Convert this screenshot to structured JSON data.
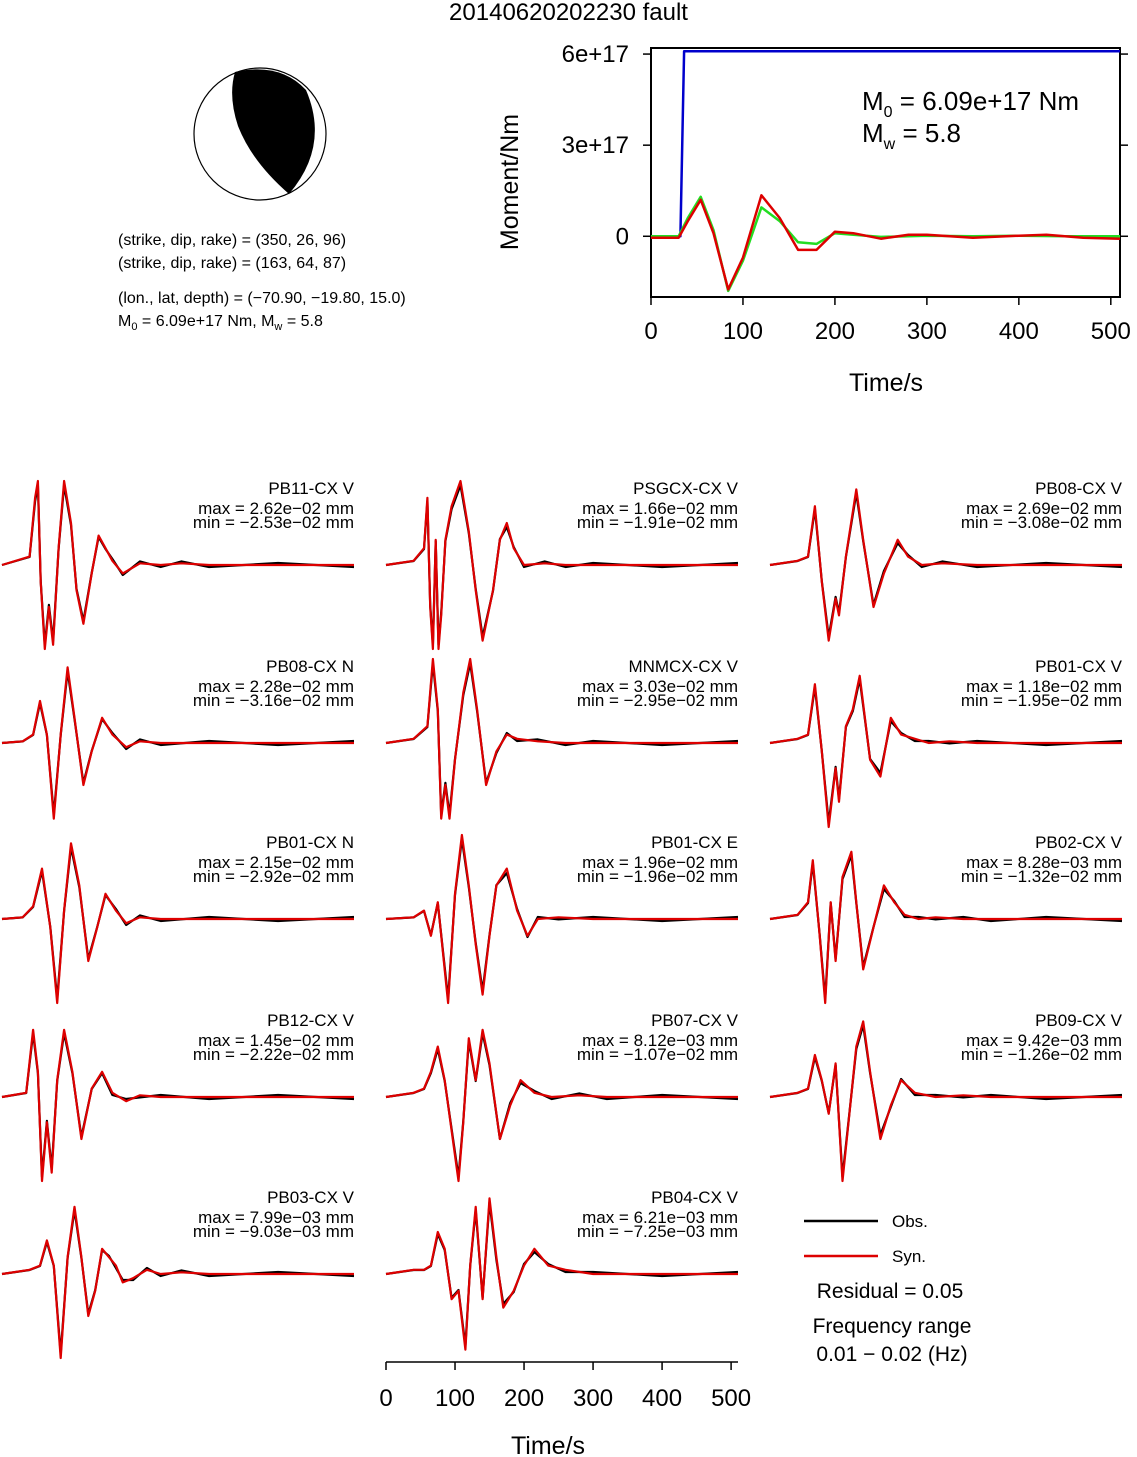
{
  "title": "20140620202230 fault",
  "info": {
    "line1": "(strike, dip, rake) = (350, 26, 96)",
    "line2": "(strike, dip, rake) = (163, 64, 87)",
    "line3": "(lon., lat, depth) = (−70.90, −19.80, 15.0)",
    "m0_prefix": "M",
    "m0_sub": "0",
    "m0_rest": " = 6.09e+17 Nm, M",
    "mw_sub": "w",
    "mw_rest": " = 5.8"
  },
  "moment_panel": {
    "ylabel": "Moment/Nm",
    "xlabel": "Time/s",
    "m0_label": "M",
    "m0_sub": "0",
    "m0_value": " = 6.09e+17 Nm",
    "mw_label": "M",
    "mw_sub": "w",
    "mw_value": " = 5.8"
  },
  "chart_data": [
    {
      "type": "line",
      "xlabel": "Time/s",
      "ylabel": "Moment/Nm",
      "xlim": [
        0,
        510
      ],
      "ylim": [
        -2e+17,
        6.2e+17
      ],
      "x_ticks": [
        0,
        100,
        200,
        300,
        400,
        500
      ],
      "y_ticks": [
        0,
        3e+17,
        6e+17
      ],
      "y_tick_labels": [
        "0",
        "3e+17",
        "6e+17"
      ],
      "series": [
        {
          "color": "#0000cc",
          "x": [
            0,
            32,
            36,
            510
          ],
          "y": [
            0,
            0,
            6.09e+17,
            6.09e+17
          ]
        },
        {
          "color": "#22dd22",
          "x": [
            0,
            30,
            40,
            54,
            68,
            84,
            100,
            120,
            140,
            160,
            180,
            200,
            220,
            250,
            300,
            350,
            400,
            450,
            510
          ],
          "y": [
            0,
            0,
            6e+16,
            1.3e+17,
            2e+16,
            -1.8e+17,
            -8e+16,
            9.5e+16,
            5e+16,
            -2e+16,
            -2.5e+16,
            1e+16,
            5000000000000000.0,
            -2000000000000000.0,
            2000000000000000.0,
            0,
            2000000000000000.0,
            0,
            0
          ]
        },
        {
          "color": "#dd0000",
          "x": [
            0,
            30,
            40,
            54,
            68,
            84,
            100,
            120,
            140,
            160,
            180,
            200,
            220,
            250,
            280,
            300,
            350,
            400,
            430,
            470,
            510
          ],
          "y": [
            -5000000000000000.0,
            -5000000000000000.0,
            5e+16,
            1.2e+17,
            1e+16,
            -1.75e+17,
            -7e+16,
            1.35e+17,
            6e+16,
            -4.5e+16,
            -4.5e+16,
            1.5e+16,
            1e+16,
            -8000000000000000.0,
            5000000000000000.0,
            5000000000000000.0,
            -5000000000000000.0,
            2000000000000000.0,
            5000000000000000.0,
            -5000000000000000.0,
            -8000000000000000.0
          ]
        }
      ]
    },
    {
      "type": "line",
      "xlabel": "Time/s",
      "xlim": [
        0,
        510
      ],
      "x_ticks": [
        0,
        100,
        200,
        300,
        400,
        500
      ],
      "stations": [
        {
          "name": "PB11-CX V",
          "max": "max = 2.62e−02 mm",
          "min": "min = −2.53e−02 mm",
          "x": [
            0,
            40,
            48,
            52,
            56,
            62,
            68,
            74,
            82,
            90,
            100,
            108,
            118,
            130,
            140,
            150,
            160,
            175,
            200,
            230,
            260,
            300,
            400,
            510
          ],
          "y": [
            0,
            0.1,
            0.8,
            1.0,
            -0.2,
            -1.0,
            -0.5,
            -0.95,
            0.2,
            1.0,
            0.5,
            -0.3,
            -0.7,
            -0.1,
            0.35,
            0.2,
            0.05,
            -0.1,
            0.02,
            0,
            0.02,
            0,
            0,
            0
          ]
        },
        {
          "name": "PSGCX-CX V",
          "max": "max = 1.66e−02 mm",
          "min": "min = −1.91e−02 mm",
          "x": [
            0,
            40,
            55,
            60,
            64,
            68,
            72,
            76,
            80,
            86,
            95,
            108,
            120,
            130,
            140,
            155,
            165,
            175,
            185,
            200,
            230,
            260,
            300,
            400,
            510
          ],
          "y": [
            0,
            0.05,
            0.2,
            0.8,
            -0.5,
            -1.0,
            0.3,
            -1.0,
            -0.6,
            0.3,
            0.7,
            1.0,
            0.4,
            -0.3,
            -0.9,
            -0.3,
            0.3,
            0.5,
            0.2,
            0,
            0.02,
            0,
            0,
            0,
            0
          ]
        },
        {
          "name": "PB08-CX V",
          "max": "max = 2.69e−02 mm",
          "min": "min = −3.08e−02 mm",
          "x": [
            0,
            40,
            55,
            65,
            75,
            85,
            95,
            100,
            110,
            125,
            135,
            150,
            165,
            185,
            200,
            220,
            250,
            300,
            400,
            510
          ],
          "y": [
            0,
            0.05,
            0.1,
            0.7,
            -0.2,
            -0.9,
            -0.4,
            -0.6,
            0.1,
            0.9,
            0.3,
            -0.5,
            -0.1,
            0.3,
            0.1,
            0,
            0.02,
            0,
            0,
            0
          ]
        },
        {
          "name": "PB08-CX N",
          "max": "max = 2.28e−02 mm",
          "min": "min = −3.16e−02 mm",
          "x": [
            0,
            30,
            45,
            55,
            65,
            75,
            85,
            95,
            105,
            118,
            130,
            145,
            160,
            180,
            200,
            230,
            300,
            400,
            510
          ],
          "y": [
            0,
            0.02,
            0.1,
            0.5,
            0.1,
            -0.9,
            0.1,
            0.9,
            0.3,
            -0.5,
            -0.1,
            0.3,
            0.1,
            -0.05,
            0.02,
            0,
            0,
            0,
            0
          ]
        },
        {
          "name": "MNMCX-CX V",
          "max": "max = 3.03e−02 mm",
          "min": "min = −2.95e−02 mm",
          "x": [
            0,
            40,
            60,
            68,
            75,
            80,
            86,
            92,
            100,
            112,
            122,
            132,
            145,
            160,
            175,
            190,
            220,
            260,
            300,
            400,
            510
          ],
          "y": [
            0,
            0.05,
            0.2,
            1.0,
            0.4,
            -0.9,
            -0.5,
            -0.9,
            -0.2,
            0.6,
            1.0,
            0.4,
            -0.5,
            -0.1,
            0.1,
            0.05,
            0.02,
            0,
            0,
            0,
            0
          ]
        },
        {
          "name": "PB01-CX V",
          "max": "max = 1.18e−02 mm",
          "min": "min = −1.95e−02 mm",
          "x": [
            0,
            40,
            55,
            65,
            75,
            85,
            95,
            100,
            110,
            120,
            130,
            145,
            160,
            175,
            190,
            210,
            230,
            260,
            300,
            400,
            510
          ],
          "y": [
            0,
            0.05,
            0.1,
            0.7,
            -0.1,
            -1.0,
            -0.3,
            -0.7,
            0.2,
            0.4,
            0.8,
            -0.2,
            -0.4,
            0.3,
            0.1,
            0.05,
            0,
            0.02,
            0,
            0,
            0
          ]
        },
        {
          "name": "PB01-CX N",
          "max": "max = 2.15e−02 mm",
          "min": "min = −2.92e−02 mm",
          "x": [
            0,
            30,
            45,
            58,
            70,
            80,
            90,
            100,
            112,
            125,
            138,
            150,
            165,
            180,
            200,
            230,
            300,
            400,
            510
          ],
          "y": [
            0,
            0.02,
            0.15,
            0.6,
            -0.1,
            -1.0,
            0.1,
            0.9,
            0.4,
            -0.5,
            -0.1,
            0.3,
            0.1,
            -0.05,
            0.02,
            0,
            0,
            0,
            0
          ]
        },
        {
          "name": "PB01-CX E",
          "max": "max = 1.96e−02 mm",
          "min": "min = −1.96e−02 mm",
          "x": [
            0,
            40,
            55,
            65,
            75,
            90,
            100,
            110,
            120,
            130,
            140,
            150,
            160,
            175,
            190,
            205,
            220,
            250,
            300,
            400,
            510
          ],
          "y": [
            0,
            0.02,
            0.1,
            -0.2,
            0.2,
            -1.0,
            0.3,
            1.0,
            0.4,
            -0.3,
            -0.9,
            -0.2,
            0.4,
            0.6,
            0.1,
            -0.2,
            0,
            0.02,
            0,
            0,
            0
          ]
        },
        {
          "name": "PB02-CX V",
          "max": "max = 8.28e−03 mm",
          "min": "min = −1.32e−02 mm",
          "x": [
            0,
            40,
            55,
            62,
            72,
            80,
            88,
            95,
            105,
            118,
            125,
            135,
            150,
            165,
            180,
            195,
            215,
            240,
            280,
            320,
            400,
            510
          ],
          "y": [
            0,
            0.05,
            0.2,
            0.7,
            -0.2,
            -1.0,
            0.2,
            -0.5,
            0.5,
            0.8,
            0.2,
            -0.6,
            -0.1,
            0.4,
            0.2,
            0.05,
            0,
            0.02,
            0,
            0,
            0,
            0
          ]
        },
        {
          "name": "PB12-CX V",
          "max": "max = 1.45e−02 mm",
          "min": "min = −2.22e−02 mm",
          "x": [
            0,
            35,
            45,
            52,
            58,
            65,
            72,
            80,
            90,
            102,
            115,
            130,
            145,
            160,
            180,
            200,
            230,
            300,
            400,
            510
          ],
          "y": [
            0,
            0.05,
            0.8,
            0.3,
            -1.0,
            -0.3,
            -0.9,
            0.2,
            0.8,
            0.3,
            -0.5,
            0.1,
            0.3,
            0.05,
            -0.05,
            0.02,
            0,
            0,
            0,
            0
          ]
        },
        {
          "name": "PB07-CX V",
          "max": "max = 8.12e−03 mm",
          "min": "min = −1.07e−02 mm",
          "x": [
            0,
            40,
            55,
            65,
            75,
            85,
            95,
            105,
            112,
            120,
            130,
            140,
            150,
            165,
            180,
            195,
            215,
            240,
            280,
            320,
            400,
            510
          ],
          "y": [
            0,
            0.05,
            0.1,
            0.3,
            0.6,
            0.2,
            -0.4,
            -1.0,
            -0.3,
            0.7,
            0.2,
            0.8,
            0.4,
            -0.5,
            -0.1,
            0.2,
            0.05,
            0,
            0.02,
            0,
            0,
            0
          ]
        },
        {
          "name": "PB09-CX V",
          "max": "max = 9.42e−03 mm",
          "min": "min = −1.26e−02 mm",
          "x": [
            0,
            40,
            55,
            65,
            75,
            85,
            95,
            105,
            115,
            125,
            135,
            145,
            160,
            175,
            190,
            210,
            240,
            280,
            320,
            400,
            510
          ],
          "y": [
            0,
            0.05,
            0.1,
            0.5,
            0.2,
            -0.2,
            0.4,
            -1.0,
            -0.2,
            0.6,
            0.9,
            0.3,
            -0.5,
            -0.1,
            0.2,
            0.05,
            0,
            0.02,
            0,
            0,
            0
          ]
        },
        {
          "name": "PB03-CX V",
          "max": "max = 7.99e−03 mm",
          "min": "min = −9.03e−03 mm",
          "x": [
            0,
            40,
            55,
            65,
            75,
            85,
            95,
            105,
            115,
            125,
            135,
            145,
            155,
            165,
            175,
            190,
            210,
            230,
            260,
            300,
            400,
            510
          ],
          "y": [
            0,
            0.05,
            0.1,
            0.4,
            0.1,
            -1.0,
            0.2,
            0.8,
            0.2,
            -0.5,
            -0.2,
            0.3,
            0.2,
            0.1,
            -0.1,
            -0.05,
            0.05,
            0,
            0.02,
            0,
            0,
            0
          ]
        },
        {
          "name": "PB04-CX V",
          "max": "max = 6.21e−03 mm",
          "min": "min = −7.25e−03 mm",
          "x": [
            0,
            40,
            55,
            65,
            75,
            85,
            95,
            105,
            115,
            122,
            130,
            140,
            150,
            160,
            170,
            185,
            200,
            215,
            235,
            260,
            300,
            400,
            510
          ],
          "y": [
            0,
            0.05,
            0.05,
            0.1,
            0.5,
            0.3,
            -0.3,
            -0.2,
            -0.9,
            0.1,
            0.8,
            -0.3,
            0.9,
            0.2,
            -0.4,
            -0.2,
            0.1,
            0.3,
            0.1,
            0.05,
            0,
            0,
            0
          ]
        }
      ]
    }
  ],
  "legend": {
    "obs": "Obs.",
    "syn": "Syn.",
    "obs_color": "#000000",
    "syn_color": "#dd0000",
    "residual": "Residual = 0.05",
    "freq_title": "Frequency range",
    "freq_range": "0.01 − 0.02 (Hz)"
  }
}
